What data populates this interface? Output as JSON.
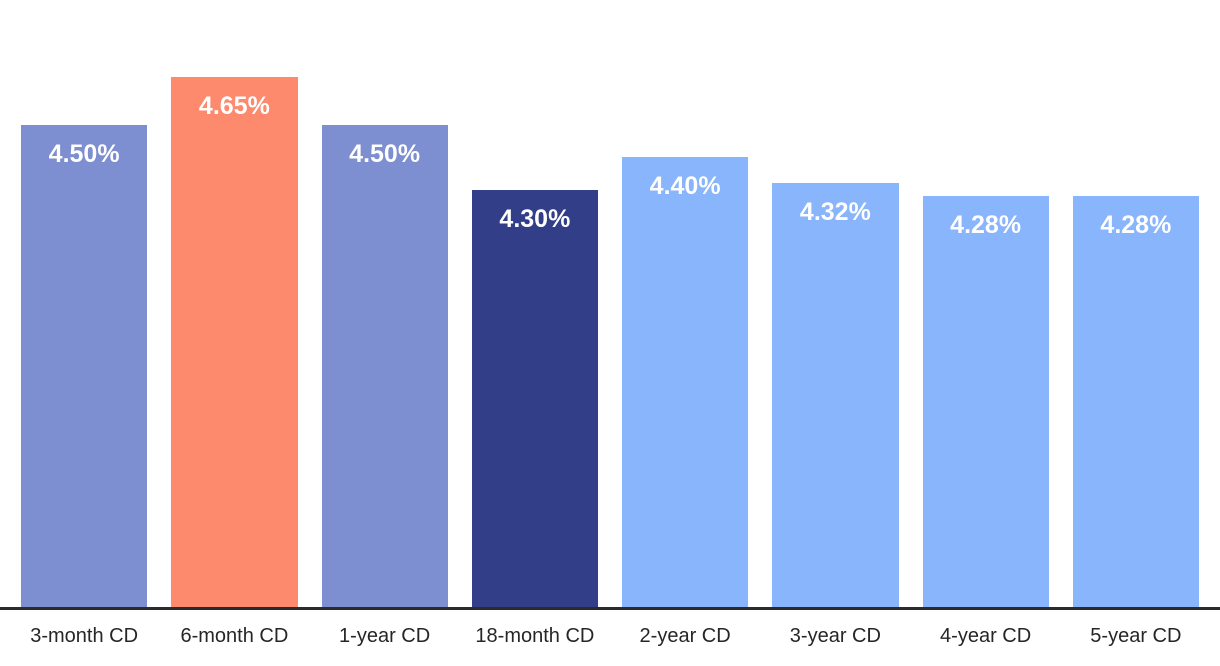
{
  "chart_data": {
    "type": "bar",
    "title": "",
    "xlabel": "",
    "ylabel": "",
    "categories": [
      "3-month CD",
      "6-month CD",
      "1-year CD",
      "18-month CD",
      "2-year CD",
      "3-year CD",
      "4-year CD",
      "5-year CD"
    ],
    "values": [
      4.5,
      4.65,
      4.5,
      4.3,
      4.4,
      4.32,
      4.28,
      4.28
    ],
    "value_labels": [
      "4.50%",
      "4.65%",
      "4.50%",
      "4.30%",
      "4.40%",
      "4.32%",
      "4.28%",
      "4.28%"
    ],
    "bar_colors": [
      "#7d8ed1",
      "#fe8a6e",
      "#7d8ed1",
      "#323f88",
      "#89b5fc",
      "#89b5fc",
      "#89b5fc",
      "#89b5fc"
    ],
    "ylim": [
      3.0,
      4.89
    ],
    "grid": false,
    "legend": null,
    "axis_line_color": "#2e2a2b",
    "value_label_color": "#ffffff",
    "category_label_color": "#262626",
    "background_color": "#ffffff"
  }
}
